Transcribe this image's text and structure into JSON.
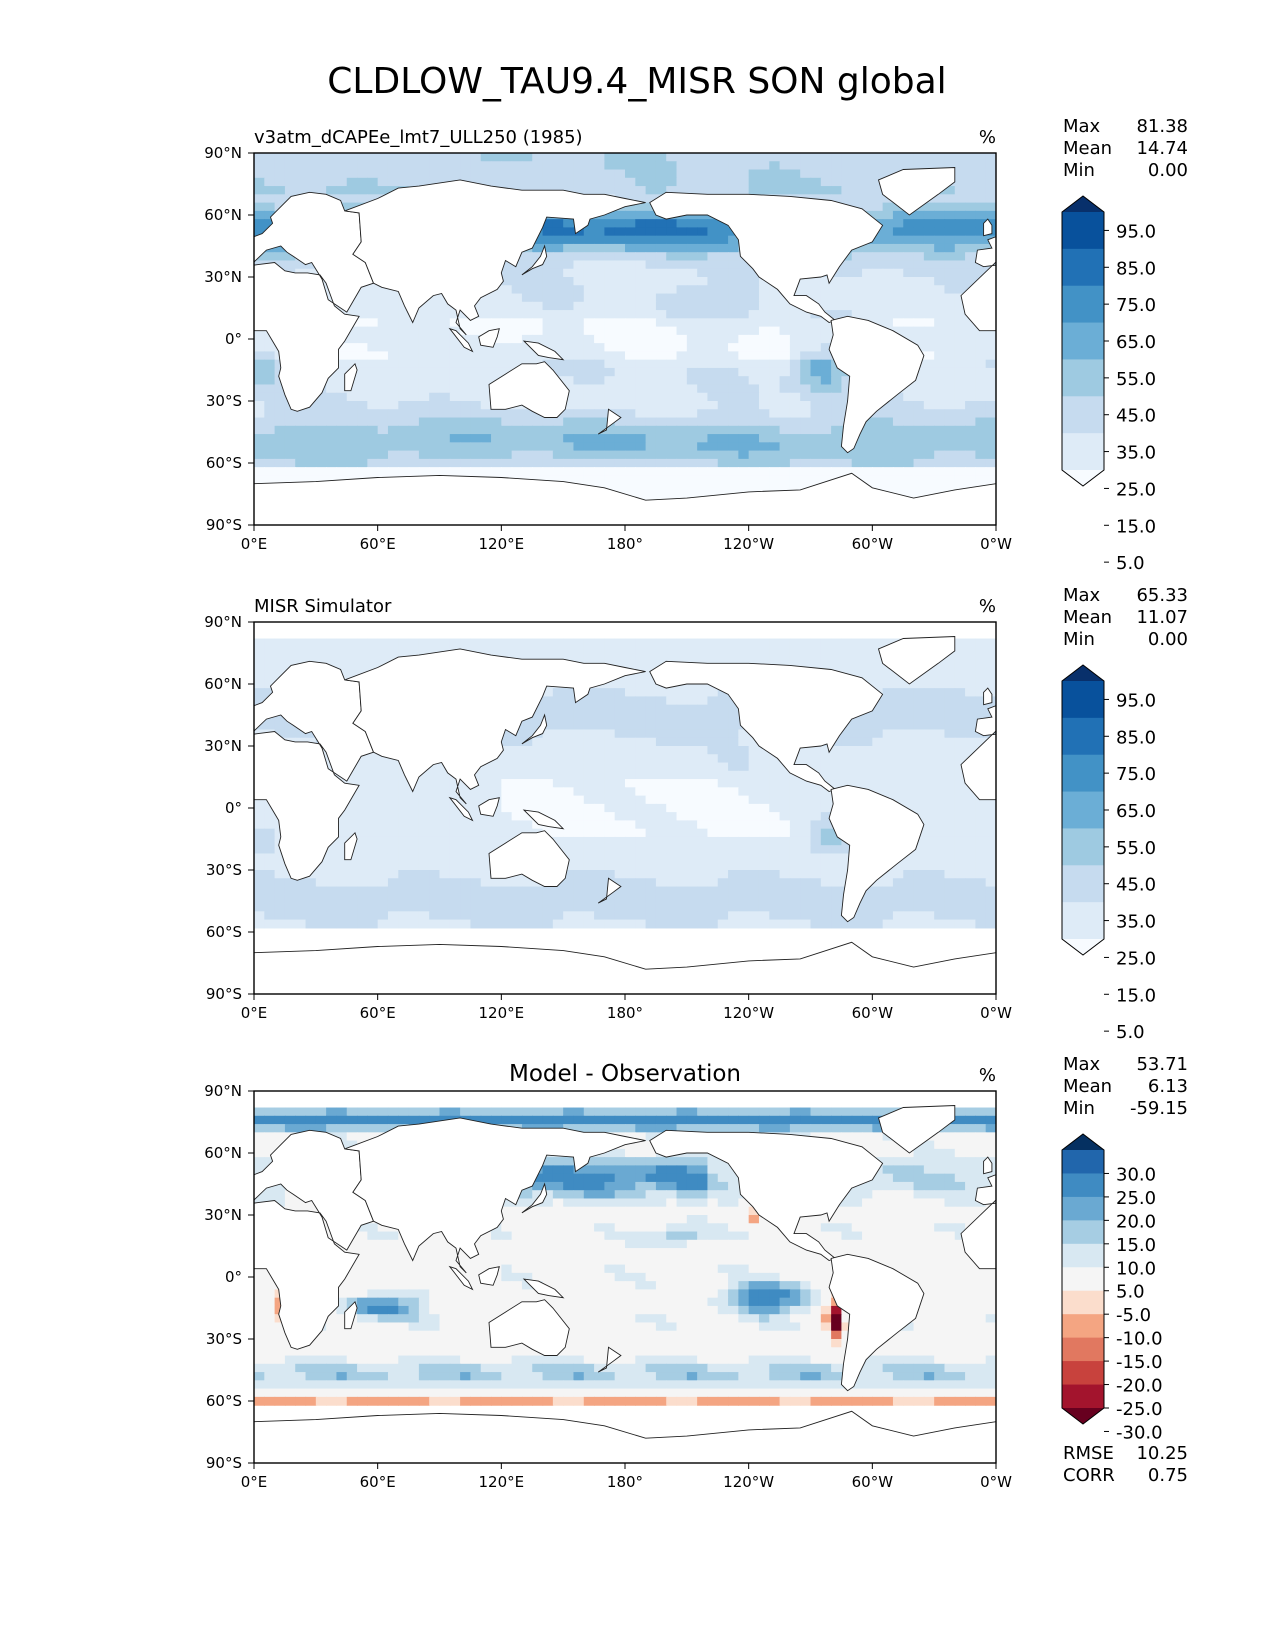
{
  "title": "CLDLOW_TAU9.4_MISR SON global",
  "xticks": [
    "0°E",
    "60°E",
    "120°E",
    "180°",
    "120°W",
    "60°W",
    "0°W"
  ],
  "yticks": [
    "90°N",
    "60°N",
    "30°N",
    "0°",
    "30°S",
    "60°S",
    "90°S"
  ],
  "chart_data": [
    {
      "type": "heatmap",
      "name": "test",
      "left_title": "v3atm_dCAPEe_lmt7_ULL250 (1985)",
      "center_title": "",
      "units": "%",
      "stats": [
        {
          "label": "Max",
          "value": "81.38"
        },
        {
          "label": "Mean",
          "value": "14.74"
        },
        {
          "label": "Min",
          "value": "0.00"
        }
      ],
      "colorbar_ticks": [
        "95.0",
        "85.0",
        "75.0",
        "65.0",
        "55.0",
        "45.0",
        "35.0",
        "25.0",
        "15.0",
        "5.0"
      ],
      "colorbar_colors": [
        "#08306b",
        "#08519c",
        "#2171b5",
        "#4292c6",
        "#6baed6",
        "#9ecae1",
        "#c6dbef",
        "#deebf7",
        "#f7fbff"
      ],
      "xlim": [
        0,
        360
      ],
      "ylim": [
        -90,
        90
      ]
    },
    {
      "type": "heatmap",
      "name": "reference",
      "left_title": "MISR Simulator",
      "center_title": "",
      "units": "%",
      "stats": [
        {
          "label": "Max",
          "value": "65.33"
        },
        {
          "label": "Mean",
          "value": "11.07"
        },
        {
          "label": "Min",
          "value": "0.00"
        }
      ],
      "colorbar_ticks": [
        "95.0",
        "85.0",
        "75.0",
        "65.0",
        "55.0",
        "45.0",
        "35.0",
        "25.0",
        "15.0",
        "5.0"
      ],
      "colorbar_colors": [
        "#08306b",
        "#08519c",
        "#2171b5",
        "#4292c6",
        "#6baed6",
        "#9ecae1",
        "#c6dbef",
        "#deebf7",
        "#f7fbff"
      ],
      "xlim": [
        0,
        360
      ],
      "ylim": [
        -90,
        90
      ]
    },
    {
      "type": "heatmap",
      "name": "difference",
      "left_title": "",
      "center_title": "Model - Observation",
      "units": "%",
      "stats": [
        {
          "label": "Max",
          "value": "53.71"
        },
        {
          "label": "Mean",
          "value": "6.13"
        },
        {
          "label": "Min",
          "value": "-59.15"
        }
      ],
      "bottom_stats": [
        {
          "label": "RMSE",
          "value": "10.25"
        },
        {
          "label": "CORR",
          "value": "0.75"
        }
      ],
      "colorbar_ticks": [
        "30.0",
        "25.0",
        "20.0",
        "15.0",
        "10.0",
        "5.0",
        "-5.0",
        "-10.0",
        "-15.0",
        "-20.0",
        "-25.0",
        "-30.0"
      ],
      "colorbar_colors": [
        "#053061",
        "#2166ac",
        "#3f8bc2",
        "#6aa9d2",
        "#a6cde3",
        "#d8e8f2",
        "#f5f5f5",
        "#fbddcc",
        "#f4a582",
        "#e17860",
        "#c8423d",
        "#a3142d",
        "#67001f"
      ],
      "xlim": [
        0,
        360
      ],
      "ylim": [
        -90,
        90
      ]
    }
  ]
}
